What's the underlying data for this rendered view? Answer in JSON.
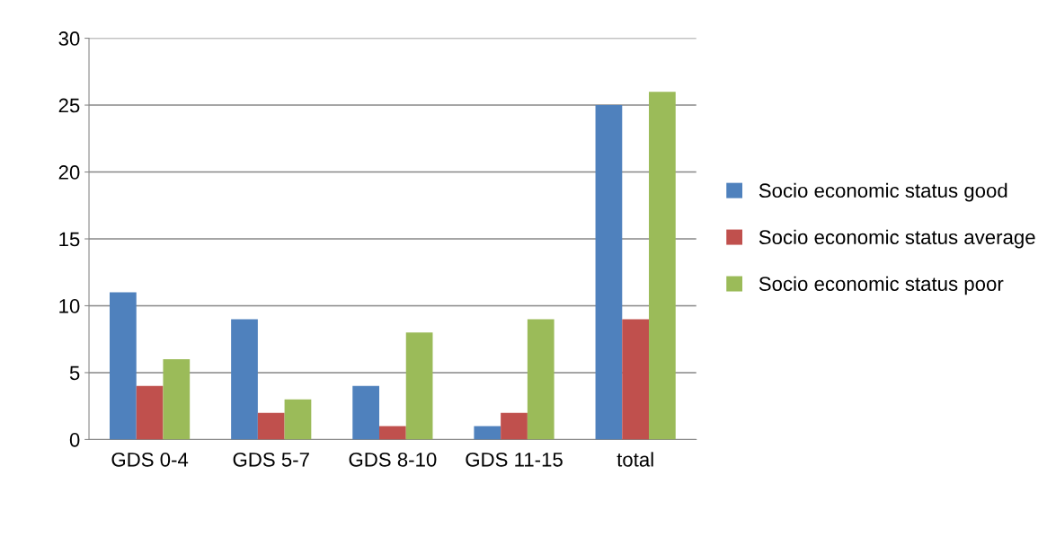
{
  "chart_data": {
    "type": "bar",
    "categories": [
      "GDS 0-4",
      "GDS 5-7",
      "GDS 8-10",
      "GDS 11-15",
      "total"
    ],
    "series": [
      {
        "name": "Socio economic status good",
        "color": "#4f81bd",
        "values": [
          11,
          9,
          4,
          1,
          25
        ]
      },
      {
        "name": "Socio economic status average",
        "color": "#c0504d",
        "values": [
          4,
          2,
          1,
          2,
          9
        ]
      },
      {
        "name": "Socio economic status poor",
        "color": "#9bbb59",
        "values": [
          6,
          3,
          8,
          9,
          26
        ]
      }
    ],
    "ylim": [
      0,
      30
    ],
    "yticks": [
      0,
      5,
      10,
      15,
      20,
      25,
      30
    ],
    "grid": "y",
    "legend": "right"
  }
}
